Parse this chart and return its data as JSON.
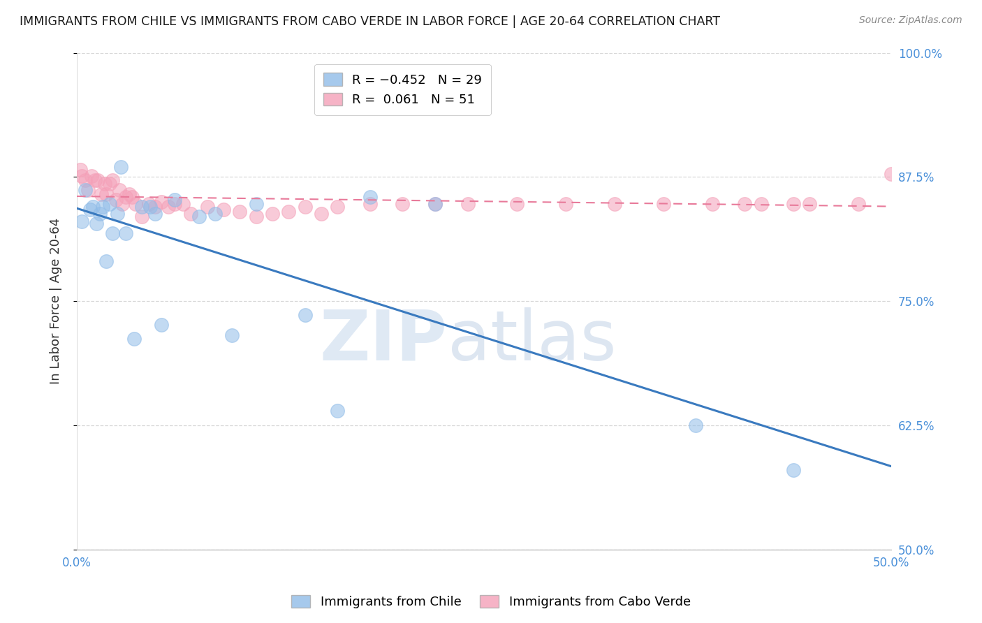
{
  "title": "IMMIGRANTS FROM CHILE VS IMMIGRANTS FROM CABO VERDE IN LABOR FORCE | AGE 20-64 CORRELATION CHART",
  "source": "Source: ZipAtlas.com",
  "ylabel": "In Labor Force | Age 20-64",
  "xlim": [
    0.0,
    0.5
  ],
  "ylim": [
    0.5,
    1.0
  ],
  "xticks": [
    0.0,
    0.05,
    0.1,
    0.15,
    0.2,
    0.25,
    0.3,
    0.35,
    0.4,
    0.45,
    0.5
  ],
  "xticklabels_show": [
    "0.0%",
    "50.0%"
  ],
  "xticklabels_pos": [
    0.0,
    0.5
  ],
  "yticks_right": [
    0.5,
    0.625,
    0.75,
    0.875,
    1.0
  ],
  "yticklabels_right": [
    "50.0%",
    "62.5%",
    "75.0%",
    "87.5%",
    "100.0%"
  ],
  "watermark_zip": "ZIP",
  "watermark_atlas": "atlas",
  "chile_color": "#90bce8",
  "caboverde_color": "#f4a0b8",
  "chile_line_color": "#3a7abf",
  "caboverde_line_color": "#e87a9a",
  "background_color": "#ffffff",
  "grid_color": "#d8d8d8",
  "chile_x": [
    0.003,
    0.005,
    0.008,
    0.01,
    0.012,
    0.014,
    0.016,
    0.018,
    0.02,
    0.022,
    0.025,
    0.027,
    0.03,
    0.035,
    0.04,
    0.045,
    0.048,
    0.052,
    0.06,
    0.075,
    0.085,
    0.095,
    0.11,
    0.14,
    0.16,
    0.18,
    0.22,
    0.38,
    0.44
  ],
  "chile_y": [
    0.83,
    0.862,
    0.842,
    0.845,
    0.828,
    0.838,
    0.845,
    0.79,
    0.848,
    0.818,
    0.838,
    0.885,
    0.818,
    0.712,
    0.845,
    0.845,
    0.838,
    0.726,
    0.852,
    0.835,
    0.838,
    0.716,
    0.848,
    0.736,
    0.64,
    0.855,
    0.848,
    0.625,
    0.58
  ],
  "caboverde_x": [
    0.002,
    0.003,
    0.005,
    0.007,
    0.009,
    0.011,
    0.013,
    0.015,
    0.017,
    0.018,
    0.02,
    0.022,
    0.024,
    0.026,
    0.028,
    0.03,
    0.032,
    0.034,
    0.036,
    0.04,
    0.044,
    0.048,
    0.052,
    0.056,
    0.06,
    0.065,
    0.07,
    0.08,
    0.09,
    0.1,
    0.11,
    0.12,
    0.13,
    0.14,
    0.15,
    0.16,
    0.18,
    0.2,
    0.22,
    0.24,
    0.27,
    0.3,
    0.33,
    0.36,
    0.39,
    0.42,
    0.45,
    0.48,
    0.5,
    0.44,
    0.41
  ],
  "caboverde_y": [
    0.882,
    0.876,
    0.872,
    0.862,
    0.876,
    0.872,
    0.872,
    0.858,
    0.868,
    0.858,
    0.868,
    0.872,
    0.852,
    0.862,
    0.848,
    0.855,
    0.858,
    0.855,
    0.848,
    0.835,
    0.848,
    0.845,
    0.85,
    0.845,
    0.848,
    0.848,
    0.838,
    0.845,
    0.842,
    0.84,
    0.835,
    0.838,
    0.84,
    0.845,
    0.838,
    0.845,
    0.848,
    0.848,
    0.848,
    0.848,
    0.848,
    0.848,
    0.848,
    0.848,
    0.848,
    0.848,
    0.848,
    0.848,
    0.878,
    0.848,
    0.848
  ]
}
